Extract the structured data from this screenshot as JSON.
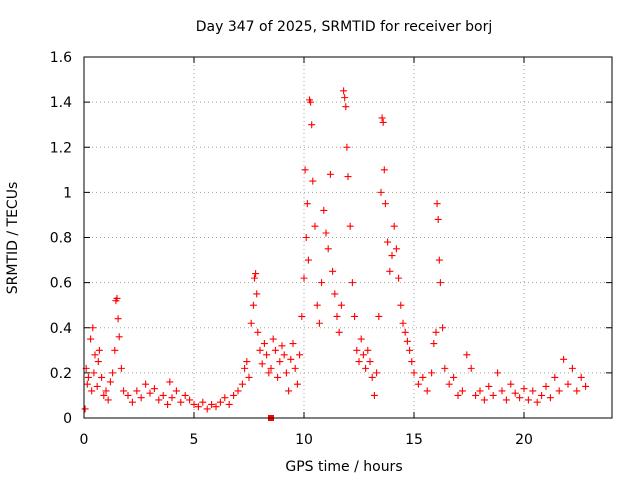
{
  "chart_data": {
    "type": "scatter",
    "title": "Day 347 of 2025, SRMTID for receiver borj",
    "xlabel": "GPS time / hours",
    "ylabel": "SRMTID / TECUs",
    "xlim": [
      0,
      24
    ],
    "ylim": [
      0,
      1.6
    ],
    "xticks": [
      0,
      5,
      10,
      15,
      20
    ],
    "yticks": [
      0,
      0.2,
      0.4,
      0.6,
      0.8,
      1,
      1.2,
      1.4,
      1.6
    ],
    "xtick_labels": [
      "0",
      "5",
      "10",
      "15",
      "20"
    ],
    "ytick_labels": [
      "0",
      "0.2",
      "0.4",
      "0.6",
      "0.8",
      "1",
      "1.2",
      "1.4",
      "1.6"
    ],
    "grid": true,
    "marker": "+",
    "color": "#ff0000",
    "series": [
      {
        "name": "SRMTID",
        "points": [
          [
            0.05,
            0.04
          ],
          [
            0.1,
            0.22
          ],
          [
            0.15,
            0.15
          ],
          [
            0.2,
            0.18
          ],
          [
            0.3,
            0.35
          ],
          [
            0.35,
            0.12
          ],
          [
            0.4,
            0.4
          ],
          [
            0.45,
            0.2
          ],
          [
            0.5,
            0.28
          ],
          [
            0.6,
            0.14
          ],
          [
            0.65,
            0.25
          ],
          [
            0.7,
            0.3
          ],
          [
            0.8,
            0.18
          ],
          [
            0.9,
            0.1
          ],
          [
            1.0,
            0.12
          ],
          [
            1.1,
            0.08
          ],
          [
            1.2,
            0.16
          ],
          [
            1.3,
            0.2
          ],
          [
            1.4,
            0.3
          ],
          [
            1.45,
            0.52
          ],
          [
            1.5,
            0.53
          ],
          [
            1.55,
            0.44
          ],
          [
            1.6,
            0.36
          ],
          [
            1.7,
            0.22
          ],
          [
            1.8,
            0.12
          ],
          [
            2.0,
            0.1
          ],
          [
            2.2,
            0.07
          ],
          [
            2.4,
            0.12
          ],
          [
            2.6,
            0.09
          ],
          [
            2.8,
            0.15
          ],
          [
            3.0,
            0.11
          ],
          [
            3.2,
            0.13
          ],
          [
            3.4,
            0.08
          ],
          [
            3.6,
            0.1
          ],
          [
            3.8,
            0.06
          ],
          [
            3.9,
            0.16
          ],
          [
            4.0,
            0.09
          ],
          [
            4.2,
            0.12
          ],
          [
            4.4,
            0.07
          ],
          [
            4.6,
            0.1
          ],
          [
            4.8,
            0.08
          ],
          [
            5.0,
            0.06
          ],
          [
            5.2,
            0.05
          ],
          [
            5.4,
            0.07
          ],
          [
            5.6,
            0.04
          ],
          [
            5.8,
            0.06
          ],
          [
            6.0,
            0.05
          ],
          [
            6.2,
            0.07
          ],
          [
            6.4,
            0.09
          ],
          [
            6.6,
            0.06
          ],
          [
            6.8,
            0.1
          ],
          [
            7.0,
            0.12
          ],
          [
            7.2,
            0.15
          ],
          [
            7.3,
            0.22
          ],
          [
            7.4,
            0.25
          ],
          [
            7.5,
            0.18
          ],
          [
            7.6,
            0.42
          ],
          [
            7.7,
            0.5
          ],
          [
            7.75,
            0.62
          ],
          [
            7.8,
            0.64
          ],
          [
            7.85,
            0.55
          ],
          [
            7.9,
            0.38
          ],
          [
            8.0,
            0.3
          ],
          [
            8.1,
            0.24
          ],
          [
            8.2,
            0.33
          ],
          [
            8.3,
            0.28
          ],
          [
            8.4,
            0.2
          ],
          [
            8.5,
            0.22
          ],
          [
            8.6,
            0.35
          ],
          [
            8.7,
            0.3
          ],
          [
            8.8,
            0.18
          ],
          [
            8.9,
            0.25
          ],
          [
            9.0,
            0.32
          ],
          [
            9.1,
            0.28
          ],
          [
            9.2,
            0.2
          ],
          [
            9.3,
            0.12
          ],
          [
            9.4,
            0.26
          ],
          [
            9.5,
            0.33
          ],
          [
            9.6,
            0.22
          ],
          [
            9.7,
            0.15
          ],
          [
            9.8,
            0.28
          ],
          [
            9.9,
            0.45
          ],
          [
            10.0,
            0.62
          ],
          [
            10.05,
            1.1
          ],
          [
            10.1,
            0.8
          ],
          [
            10.15,
            0.95
          ],
          [
            10.2,
            0.7
          ],
          [
            10.25,
            1.41
          ],
          [
            10.3,
            1.4
          ],
          [
            10.35,
            1.3
          ],
          [
            10.4,
            1.05
          ],
          [
            10.5,
            0.85
          ],
          [
            10.6,
            0.5
          ],
          [
            10.7,
            0.42
          ],
          [
            10.8,
            0.6
          ],
          [
            10.9,
            0.92
          ],
          [
            11.0,
            0.82
          ],
          [
            11.1,
            0.75
          ],
          [
            11.2,
            1.08
          ],
          [
            11.3,
            0.65
          ],
          [
            11.4,
            0.55
          ],
          [
            11.5,
            0.45
          ],
          [
            11.6,
            0.38
          ],
          [
            11.7,
            0.5
          ],
          [
            11.8,
            1.45
          ],
          [
            11.85,
            1.42
          ],
          [
            11.9,
            1.38
          ],
          [
            11.95,
            1.2
          ],
          [
            12.0,
            1.07
          ],
          [
            12.1,
            0.85
          ],
          [
            12.2,
            0.6
          ],
          [
            12.3,
            0.45
          ],
          [
            12.4,
            0.3
          ],
          [
            12.5,
            0.25
          ],
          [
            12.6,
            0.35
          ],
          [
            12.7,
            0.28
          ],
          [
            12.8,
            0.22
          ],
          [
            12.9,
            0.3
          ],
          [
            13.0,
            0.25
          ],
          [
            13.1,
            0.18
          ],
          [
            13.2,
            0.1
          ],
          [
            13.3,
            0.2
          ],
          [
            13.4,
            0.45
          ],
          [
            13.5,
            1.0
          ],
          [
            13.55,
            1.33
          ],
          [
            13.6,
            1.31
          ],
          [
            13.65,
            1.1
          ],
          [
            13.7,
            0.95
          ],
          [
            13.8,
            0.78
          ],
          [
            13.9,
            0.65
          ],
          [
            14.0,
            0.72
          ],
          [
            14.1,
            0.85
          ],
          [
            14.2,
            0.75
          ],
          [
            14.3,
            0.62
          ],
          [
            14.4,
            0.5
          ],
          [
            14.5,
            0.42
          ],
          [
            14.6,
            0.38
          ],
          [
            14.7,
            0.34
          ],
          [
            14.8,
            0.3
          ],
          [
            14.9,
            0.25
          ],
          [
            15.0,
            0.2
          ],
          [
            15.2,
            0.15
          ],
          [
            15.4,
            0.18
          ],
          [
            15.6,
            0.12
          ],
          [
            15.8,
            0.2
          ],
          [
            15.9,
            0.33
          ],
          [
            16.0,
            0.38
          ],
          [
            16.05,
            0.95
          ],
          [
            16.1,
            0.88
          ],
          [
            16.15,
            0.7
          ],
          [
            16.2,
            0.6
          ],
          [
            16.3,
            0.4
          ],
          [
            16.4,
            0.22
          ],
          [
            16.6,
            0.15
          ],
          [
            16.8,
            0.18
          ],
          [
            17.0,
            0.1
          ],
          [
            17.2,
            0.12
          ],
          [
            17.4,
            0.28
          ],
          [
            17.6,
            0.22
          ],
          [
            17.8,
            0.1
          ],
          [
            18.0,
            0.12
          ],
          [
            18.2,
            0.08
          ],
          [
            18.4,
            0.14
          ],
          [
            18.6,
            0.1
          ],
          [
            18.8,
            0.2
          ],
          [
            19.0,
            0.12
          ],
          [
            19.2,
            0.08
          ],
          [
            19.4,
            0.15
          ],
          [
            19.6,
            0.11
          ],
          [
            19.8,
            0.09
          ],
          [
            20.0,
            0.13
          ],
          [
            20.2,
            0.08
          ],
          [
            20.4,
            0.12
          ],
          [
            20.6,
            0.07
          ],
          [
            20.8,
            0.1
          ],
          [
            21.0,
            0.14
          ],
          [
            21.2,
            0.09
          ],
          [
            21.4,
            0.18
          ],
          [
            21.6,
            0.12
          ],
          [
            21.8,
            0.26
          ],
          [
            22.0,
            0.15
          ],
          [
            22.2,
            0.22
          ],
          [
            22.4,
            0.12
          ],
          [
            22.6,
            0.18
          ],
          [
            22.8,
            0.14
          ]
        ]
      }
    ],
    "extra_square_marker": [
      8.5,
      0.0
    ]
  }
}
